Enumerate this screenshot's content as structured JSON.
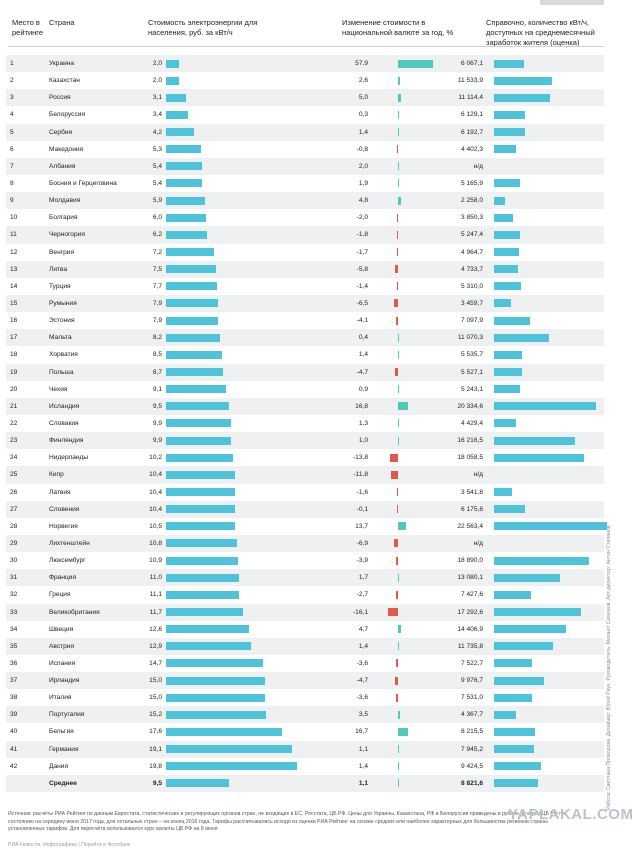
{
  "chart_data": {
    "type": "table",
    "columns": {
      "rank": "Место в рейтинге",
      "country": "Страна",
      "price": "Стоимость электроэнергии для населения, руб. за кВт/ч",
      "change": "Изменение стоимости в национальной валюте за год, %",
      "kwh": "Справочно, количество кВт/ч, доступных на среднемесячный заработок жителя (оценка)"
    },
    "rows": [
      {
        "rank": "1",
        "country": "Украина",
        "price": "2,0",
        "price_value": 2.0,
        "change": "57,9",
        "change_value": 57.9,
        "kwh": "6 067,1",
        "kwh_value": 6067.1
      },
      {
        "rank": "2",
        "country": "Казахстан",
        "price": "2,0",
        "price_value": 2.0,
        "change": "2,6",
        "change_value": 2.6,
        "kwh": "11 533,9",
        "kwh_value": 11533.9
      },
      {
        "rank": "3",
        "country": "Россия",
        "price": "3,1",
        "price_value": 3.1,
        "change": "5,0",
        "change_value": 5.0,
        "kwh": "11 114,4",
        "kwh_value": 11114.4
      },
      {
        "rank": "4",
        "country": "Белоруссия",
        "price": "3,4",
        "price_value": 3.4,
        "change": "0,3",
        "change_value": 0.3,
        "kwh": "6 129,1",
        "kwh_value": 6129.1
      },
      {
        "rank": "5",
        "country": "Сербия",
        "price": "4,2",
        "price_value": 4.2,
        "change": "1,4",
        "change_value": 1.4,
        "kwh": "6 192,7",
        "kwh_value": 6192.7
      },
      {
        "rank": "6",
        "country": "Македония",
        "price": "5,3",
        "price_value": 5.3,
        "change": "-0,8",
        "change_value": -0.8,
        "kwh": "4 402,3",
        "kwh_value": 4402.3
      },
      {
        "rank": "7",
        "country": "Албания",
        "price": "5,4",
        "price_value": 5.4,
        "change": "2,0",
        "change_value": 2.0,
        "kwh": "н/д",
        "kwh_value": null
      },
      {
        "rank": "8",
        "country": "Босния и Герцеговина",
        "price": "5,4",
        "price_value": 5.4,
        "change": "1,9",
        "change_value": 1.9,
        "kwh": "5 165,9",
        "kwh_value": 5165.9
      },
      {
        "rank": "9",
        "country": "Молдавия",
        "price": "5,9",
        "price_value": 5.9,
        "change": "4,8",
        "change_value": 4.8,
        "kwh": "2 258,0",
        "kwh_value": 2258.0
      },
      {
        "rank": "10",
        "country": "Болгария",
        "price": "6,0",
        "price_value": 6.0,
        "change": "-2,0",
        "change_value": -2.0,
        "kwh": "3 850,3",
        "kwh_value": 3850.3
      },
      {
        "rank": "11",
        "country": "Черногория",
        "price": "6,2",
        "price_value": 6.2,
        "change": "-1,8",
        "change_value": -1.8,
        "kwh": "5 247,4",
        "kwh_value": 5247.4
      },
      {
        "rank": "12",
        "country": "Венгрия",
        "price": "7,2",
        "price_value": 7.2,
        "change": "-1,7",
        "change_value": -1.7,
        "kwh": "4 964,7",
        "kwh_value": 4964.7
      },
      {
        "rank": "13",
        "country": "Литва",
        "price": "7,5",
        "price_value": 7.5,
        "change": "-5,8",
        "change_value": -5.8,
        "kwh": "4 733,7",
        "kwh_value": 4733.7
      },
      {
        "rank": "14",
        "country": "Турция",
        "price": "7,7",
        "price_value": 7.7,
        "change": "-1,4",
        "change_value": -1.4,
        "kwh": "5 310,0",
        "kwh_value": 5310.0
      },
      {
        "rank": "15",
        "country": "Румыния",
        "price": "7,9",
        "price_value": 7.9,
        "change": "-6,5",
        "change_value": -6.5,
        "kwh": "3 459,7",
        "kwh_value": 3459.7
      },
      {
        "rank": "16",
        "country": "Эстония",
        "price": "7,9",
        "price_value": 7.9,
        "change": "-4,1",
        "change_value": -4.1,
        "kwh": "7 097,9",
        "kwh_value": 7097.9
      },
      {
        "rank": "17",
        "country": "Мальта",
        "price": "8,2",
        "price_value": 8.2,
        "change": "0,4",
        "change_value": 0.4,
        "kwh": "11 070,3",
        "kwh_value": 11070.3
      },
      {
        "rank": "18",
        "country": "Хорватия",
        "price": "8,5",
        "price_value": 8.5,
        "change": "1,4",
        "change_value": 1.4,
        "kwh": "5 535,7",
        "kwh_value": 5535.7
      },
      {
        "rank": "19",
        "country": "Польша",
        "price": "8,7",
        "price_value": 8.7,
        "change": "-4,7",
        "change_value": -4.7,
        "kwh": "5 527,1",
        "kwh_value": 5527.1
      },
      {
        "rank": "20",
        "country": "Чехия",
        "price": "9,1",
        "price_value": 9.1,
        "change": "0,9",
        "change_value": 0.9,
        "kwh": "5 243,1",
        "kwh_value": 5243.1
      },
      {
        "rank": "21",
        "country": "Исландия",
        "price": "9,5",
        "price_value": 9.5,
        "change": "16,8",
        "change_value": 16.8,
        "kwh": "20 334,6",
        "kwh_value": 20334.6
      },
      {
        "rank": "22",
        "country": "Словакия",
        "price": "9,9",
        "price_value": 9.9,
        "change": "1,3",
        "change_value": 1.3,
        "kwh": "4 429,4",
        "kwh_value": 4429.4
      },
      {
        "rank": "23",
        "country": "Финляндия",
        "price": "9,9",
        "price_value": 9.9,
        "change": "1,0",
        "change_value": 1.0,
        "kwh": "16 216,5",
        "kwh_value": 16216.5
      },
      {
        "rank": "24",
        "country": "Нидерланды",
        "price": "10,2",
        "price_value": 10.2,
        "change": "-13,8",
        "change_value": -13.8,
        "kwh": "18 058,5",
        "kwh_value": 18058.5
      },
      {
        "rank": "25",
        "country": "Кипр",
        "price": "10,4",
        "price_value": 10.4,
        "change": "-11,8",
        "change_value": -11.8,
        "kwh": "н/д",
        "kwh_value": null
      },
      {
        "rank": "26",
        "country": "Латвия",
        "price": "10,4",
        "price_value": 10.4,
        "change": "-1,6",
        "change_value": -1.6,
        "kwh": "3 541,8",
        "kwh_value": 3541.8
      },
      {
        "rank": "27",
        "country": "Словения",
        "price": "10,4",
        "price_value": 10.4,
        "change": "-0,1",
        "change_value": -0.1,
        "kwh": "6 175,6",
        "kwh_value": 6175.6
      },
      {
        "rank": "28",
        "country": "Норвегия",
        "price": "10,5",
        "price_value": 10.5,
        "change": "13,7",
        "change_value": 13.7,
        "kwh": "22 563,4",
        "kwh_value": 22563.4
      },
      {
        "rank": "29",
        "country": "Лихтенштейн",
        "price": "10,8",
        "price_value": 10.8,
        "change": "-6,9",
        "change_value": -6.9,
        "kwh": "н/д",
        "kwh_value": null
      },
      {
        "rank": "30",
        "country": "Люксембург",
        "price": "10,9",
        "price_value": 10.9,
        "change": "-3,9",
        "change_value": -3.9,
        "kwh": "18 890,0",
        "kwh_value": 18890.0
      },
      {
        "rank": "31",
        "country": "Франция",
        "price": "11,0",
        "price_value": 11.0,
        "change": "1,7",
        "change_value": 1.7,
        "kwh": "13 080,1",
        "kwh_value": 13080.1
      },
      {
        "rank": "32",
        "country": "Греция",
        "price": "11,1",
        "price_value": 11.1,
        "change": "-2,7",
        "change_value": -2.7,
        "kwh": "7 427,6",
        "kwh_value": 7427.6
      },
      {
        "rank": "33",
        "country": "Великобритания",
        "price": "11,7",
        "price_value": 11.7,
        "change": "-16,1",
        "change_value": -16.1,
        "kwh": "17 292,6",
        "kwh_value": 17292.6
      },
      {
        "rank": "34",
        "country": "Швеция",
        "price": "12,6",
        "price_value": 12.6,
        "change": "4,7",
        "change_value": 4.7,
        "kwh": "14 406,9",
        "kwh_value": 14406.9
      },
      {
        "rank": "35",
        "country": "Австрия",
        "price": "12,9",
        "price_value": 12.9,
        "change": "1,4",
        "change_value": 1.4,
        "kwh": "11 735,8",
        "kwh_value": 11735.8
      },
      {
        "rank": "36",
        "country": "Испания",
        "price": "14,7",
        "price_value": 14.7,
        "change": "-3,6",
        "change_value": -3.6,
        "kwh": "7 522,7",
        "kwh_value": 7522.7
      },
      {
        "rank": "37",
        "country": "Ирландия",
        "price": "15,0",
        "price_value": 15.0,
        "change": "-4,7",
        "change_value": -4.7,
        "kwh": "9 976,7",
        "kwh_value": 9976.7
      },
      {
        "rank": "38",
        "country": "Италия",
        "price": "15,0",
        "price_value": 15.0,
        "change": "-3,6",
        "change_value": -3.6,
        "kwh": "7 531,0",
        "kwh_value": 7531.0
      },
      {
        "rank": "39",
        "country": "Португалия",
        "price": "15,2",
        "price_value": 15.2,
        "change": "3,5",
        "change_value": 3.5,
        "kwh": "4 367,7",
        "kwh_value": 4367.7
      },
      {
        "rank": "40",
        "country": "Бельгия",
        "price": "17,6",
        "price_value": 17.6,
        "change": "16,7",
        "change_value": 16.7,
        "kwh": "8 215,5",
        "kwh_value": 8215.5
      },
      {
        "rank": "41",
        "country": "Германия",
        "price": "19,1",
        "price_value": 19.1,
        "change": "1,1",
        "change_value": 1.1,
        "kwh": "7 945,2",
        "kwh_value": 7945.2
      },
      {
        "rank": "42",
        "country": "Дания",
        "price": "19,8",
        "price_value": 19.8,
        "change": "1,4",
        "change_value": 1.4,
        "kwh": "9 424,5",
        "kwh_value": 9424.5
      },
      {
        "rank": "",
        "country": "Среднее",
        "price": "9,5",
        "price_value": 9.5,
        "change": "1,1",
        "change_value": 1.1,
        "kwh": "8 821,6",
        "kwh_value": 8821.6
      }
    ],
    "colors": {
      "positive": "#4fc3d9",
      "negative": "#e2584a",
      "change_positive": "#4fc9b8",
      "row_shade": "#eef0f2"
    }
  },
  "source_note": "Источник: расчёты РИА Рейтинг по данным Евростата, статистических и регулирующих органов стран, не входящих в ЕС, Росстата, ЦБ РФ. Цены для Украины, Казахстана, РФ и Белоруссии приведены в рублях по курсу ЦБ РФ по состоянию на середину июня 2017 года, для остальных стран – на конец 2016 года. Тарифы рассчитывались исходя из оценки РИА Рейтинг на основе средних или наиболее характерных для большинства регионов страны установленных тарифов. Для пересчёта использовался курс валюты ЦБ РФ на 9 июня",
  "footer": "РИА Новости. Инфографика | Перейти в Фотобанк",
  "credits": "Работа: Светлана Проворова. Дизайнер: Юрий Раух. Руководитель: Михаил Симонов. Арт-директор: Антон Степанов",
  "watermark": "YAPLAKAL.COM"
}
